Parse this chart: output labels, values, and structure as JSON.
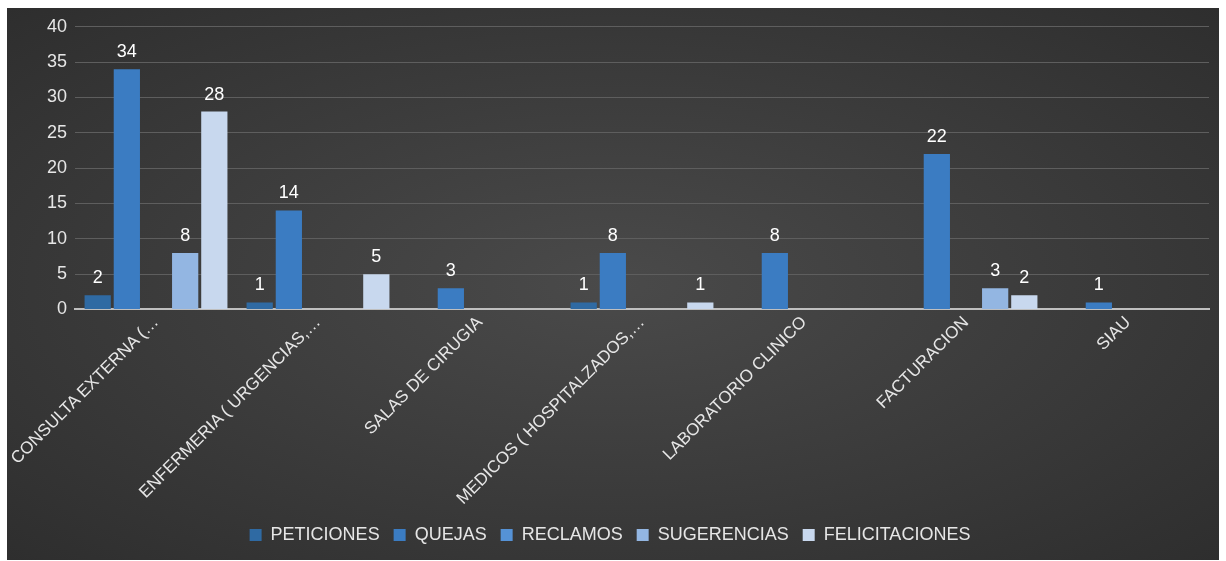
{
  "chart_data": {
    "type": "bar",
    "categories": [
      "CONSULTA EXTERNA (…",
      "ENFERMERIA ( URGENCIAS,…",
      "SALAS DE CIRUGIA",
      "MEDICOS ( HOSPITALZADOS,…",
      "LABORATORIO CLINICO",
      "FACTURACION",
      "SIAU"
    ],
    "series": [
      {
        "name": "PETICIONES",
        "color": "#2f6aa3",
        "values": [
          2,
          1,
          0,
          1,
          0,
          0,
          0
        ],
        "value_labels": [
          "2",
          "1",
          null,
          "1",
          null,
          null,
          null
        ]
      },
      {
        "name": "QUEJAS",
        "color": "#3b7cc2",
        "values": [
          34,
          14,
          3,
          8,
          8,
          22,
          1
        ],
        "value_labels": [
          "34",
          "14",
          "3",
          "8",
          "8",
          "22",
          "1"
        ]
      },
      {
        "name": "RECLAMOS",
        "color": "#5592d6",
        "values": [
          0,
          0,
          0,
          0,
          0,
          0,
          0
        ],
        "value_labels": [
          null,
          null,
          null,
          null,
          null,
          null,
          null
        ]
      },
      {
        "name": "SUGERENCIAS",
        "color": "#93b6e2",
        "values": [
          8,
          0,
          0,
          0,
          0,
          3,
          0
        ],
        "value_labels": [
          "8",
          null,
          null,
          null,
          null,
          "3",
          null
        ]
      },
      {
        "name": "FELICITACIONES",
        "color": "#c8d8ee",
        "values": [
          28,
          5,
          0,
          1,
          0,
          2,
          0
        ],
        "value_labels": [
          "28",
          "5",
          null,
          "1",
          null,
          "2",
          null
        ]
      }
    ],
    "ylim": [
      0,
      40
    ],
    "yticks": [
      0,
      5,
      10,
      15,
      20,
      25,
      30,
      35,
      40
    ],
    "grid": "y",
    "legend": "bottom"
  }
}
